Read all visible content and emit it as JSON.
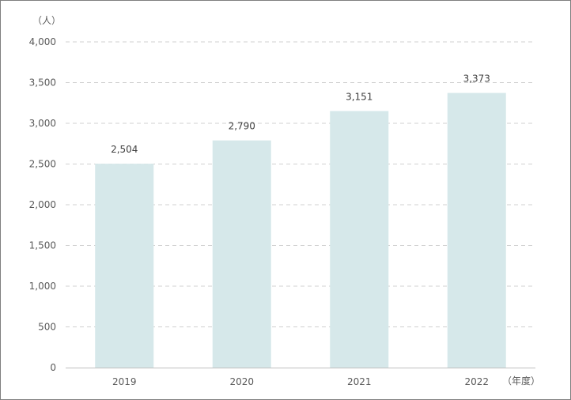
{
  "chart_data": {
    "type": "bar",
    "categories": [
      "2019",
      "2020",
      "2021",
      "2022"
    ],
    "values": [
      2504,
      2790,
      3151,
      3373
    ],
    "value_labels": [
      "2,504",
      "2,790",
      "3,151",
      "3,373"
    ],
    "y_unit": "（人）",
    "x_unit": "（年度）",
    "ylim": [
      0,
      4000
    ],
    "yticks": [
      0,
      500,
      1000,
      1500,
      2000,
      2500,
      3000,
      3500,
      4000
    ],
    "ytick_labels": [
      "0",
      "500",
      "1,000",
      "1,500",
      "2,000",
      "2,500",
      "3,000",
      "3,500",
      "4,000"
    ],
    "grid": "horizontal-dashed",
    "bar_color": "#d6e8ea",
    "grid_color": "#d0d0d0",
    "axis_color": "#bfbfbf"
  }
}
